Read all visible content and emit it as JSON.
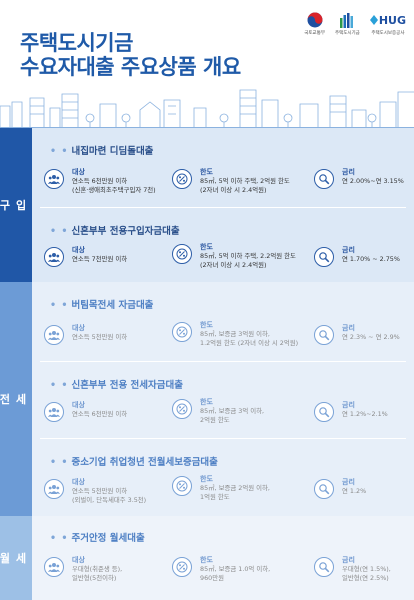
{
  "title": {
    "line1": "주택도시기금",
    "line2": "수요자대출 주요상품 개요"
  },
  "logos": [
    {
      "icon": "taegeuk-emblem-icon",
      "caption": "국토교통부"
    },
    {
      "icon": "hudf-bars-icon",
      "caption": "주택도시기금"
    },
    {
      "icon": "hug-logo-icon",
      "text": "HUG",
      "caption": "주택도시보증공사"
    }
  ],
  "colors": {
    "title": "#1f5aa8",
    "tab_dark": "#2057a7",
    "tab_mid": "#6c9bd6",
    "tab_light": "#9dc0e6",
    "card_dark": "#dce8f6",
    "card_light": "#eef3fa"
  },
  "sections": [
    {
      "name": "구입",
      "products": [
        {
          "title": "내집마련 디딤돌대출",
          "target_label": "대상",
          "target_lines": [
            "연소득 6천만원 이하",
            "(신혼·생애최초주택구입자 7천)"
          ],
          "limit_label": "한도",
          "limit_lines": [
            "85㎡, 5억 이하 주택, 2억원 한도",
            "(2자녀 이상 시 2.4억원)"
          ],
          "rate_label": "금리",
          "rate_lines": [
            "연 2.00%~연 3.15%"
          ]
        },
        {
          "title": "신혼부부 전용구입자금대출",
          "target_label": "대상",
          "target_lines": [
            "연소득 7천만원 이하"
          ],
          "limit_label": "한도",
          "limit_lines": [
            "85㎡, 5억 이하 주택, 2.2억원 한도",
            "(2자녀 이상 시 2.4억원)"
          ],
          "rate_label": "금리",
          "rate_lines": [
            "연 1.70% ~ 2.75%"
          ]
        }
      ]
    },
    {
      "name": "전세",
      "products": [
        {
          "title": "버팀목전세 자금대출",
          "target_label": "대상",
          "target_lines": [
            "연소득 5천만원 이하"
          ],
          "limit_label": "한도",
          "limit_lines": [
            "85㎡, 보증금 3억원 이하,",
            "1.2억원 한도 (2자녀 이상 시 2억원)"
          ],
          "rate_label": "금리",
          "rate_lines": [
            "연 2.3% ~ 연 2.9%"
          ]
        },
        {
          "title": "신혼부부 전용 전세자금대출",
          "target_label": "대상",
          "target_lines": [
            "연소득 6천만원 이하"
          ],
          "limit_label": "한도",
          "limit_lines": [
            "85㎡, 보증금 3억 이하,",
            "2억원 한도"
          ],
          "rate_label": "금리",
          "rate_lines": [
            "연 1.2%~2.1%"
          ]
        },
        {
          "title": "중소기업 취업청년 전월세보증금대출",
          "target_label": "대상",
          "target_lines": [
            "연소득 5천만원 이하",
            "(외벌이, 단독세대주 3.5천)"
          ],
          "limit_label": "한도",
          "limit_lines": [
            "85㎡, 보증금 2억원 이하,",
            "1억원 한도"
          ],
          "rate_label": "금리",
          "rate_lines": [
            "연 1.2%"
          ]
        }
      ]
    },
    {
      "name": "월세",
      "products": [
        {
          "title": "주거안정 월세대출",
          "target_label": "대상",
          "target_lines": [
            "우대형(취준생 등),",
            "일반형(5천이하)"
          ],
          "limit_label": "한도",
          "limit_lines": [
            "85㎡, 보증금 1.0억 이하,",
            "960만원"
          ],
          "rate_label": "금리",
          "rate_lines": [
            "우대형(연 1.5%),",
            "일반형(연 2.5%)"
          ]
        }
      ]
    }
  ]
}
